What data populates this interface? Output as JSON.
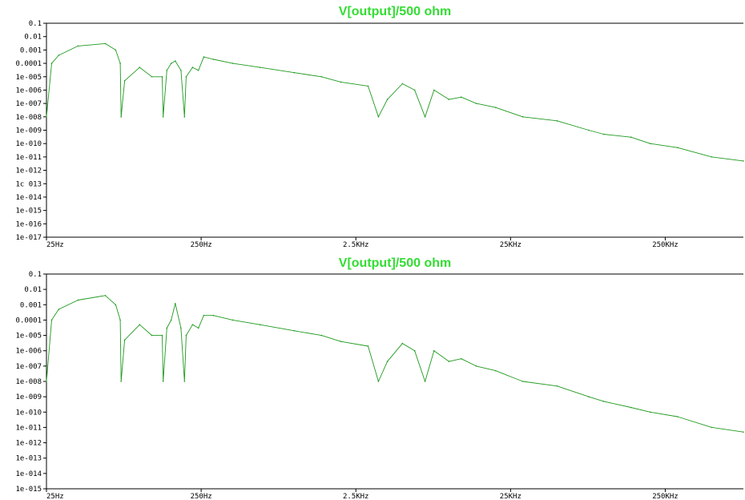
{
  "colors": {
    "trace": "#1f9a1f",
    "title": "#33dd33",
    "axis": "#000000",
    "background": "#ffffff"
  },
  "chart_data": [
    {
      "type": "line",
      "title": "V[output]/500 ohm",
      "xscale": "log",
      "yscale": "log",
      "xlim": [
        25,
        800000
      ],
      "ylim": [
        1e-17,
        0.1
      ],
      "grid": false,
      "x_tick_values": [
        25,
        250,
        2500,
        25000,
        250000
      ],
      "x_tick_labels": [
        "25Hz",
        "250Hz",
        "2.5KHz",
        "25KHz",
        "250KHz"
      ],
      "y_tick_labels": [
        "0.1",
        "0.01",
        "0.001",
        "0.0001",
        "1e-005",
        "1e-006",
        "1e-007",
        "1e-008",
        "1e-009",
        "1e-010",
        "1e-011",
        "1e-012",
        "1c 013",
        "1e-014",
        "1e-015",
        "1e-016",
        "1e-017"
      ],
      "series": [
        {
          "x": [
            25,
            27,
            30,
            40,
            60,
            70,
            75,
            76,
            80,
            100,
            120,
            140,
            142,
            150,
            160,
            170,
            185,
            195,
            200,
            220,
            240,
            260,
            300,
            400,
            600,
            1000,
            1500,
            2000,
            3000,
            3500,
            4000,
            5000,
            6000,
            7000,
            8000,
            10000,
            12000,
            15000,
            20000,
            30000,
            50000,
            80000,
            100000,
            150000,
            200000,
            300000,
            500000,
            800000
          ],
          "y": [
            1e-08,
            0.0001,
            0.0004,
            0.002,
            0.003,
            0.001,
            0.0001,
            1e-08,
            5e-06,
            5e-05,
            1e-05,
            1e-05,
            1e-08,
            3e-05,
            0.0001,
            0.00015,
            3e-05,
            1e-08,
            1e-05,
            5e-05,
            3e-05,
            0.0003,
            0.0002,
            0.0001,
            5e-05,
            2e-05,
            1e-05,
            4e-06,
            2e-06,
            1e-08,
            2e-07,
            3e-06,
            1e-06,
            1e-08,
            1e-06,
            2e-07,
            3e-07,
            1e-07,
            5e-08,
            1e-08,
            5e-09,
            1e-09,
            5e-10,
            3e-10,
            1e-10,
            5e-11,
            1e-11,
            5e-12
          ]
        }
      ]
    },
    {
      "type": "line",
      "title": "V[output]/500 ohm",
      "xscale": "log",
      "yscale": "log",
      "xlim": [
        25,
        800000
      ],
      "ylim": [
        1e-15,
        0.1
      ],
      "grid": false,
      "x_tick_values": [
        25,
        250,
        2500,
        25000,
        250000
      ],
      "x_tick_labels": [
        "25Hz",
        "250Hz",
        "2.5KHz",
        "25KHz",
        "250KHz"
      ],
      "y_tick_labels": [
        "0.1",
        "0.01",
        "0.001",
        "0.0001",
        "1e-005",
        "1e-006",
        "1e-007",
        "1e-008",
        "1e-009",
        "1e-010",
        "1e-011",
        "1e-012",
        "1e-013",
        "1e-014",
        "1e-015"
      ],
      "series": [
        {
          "x": [
            25,
            27,
            30,
            40,
            60,
            70,
            75,
            76,
            80,
            100,
            120,
            140,
            142,
            150,
            160,
            170,
            185,
            195,
            200,
            220,
            240,
            260,
            300,
            400,
            600,
            1000,
            1500,
            2000,
            3000,
            3500,
            4000,
            5000,
            6000,
            7000,
            8000,
            10000,
            12000,
            15000,
            20000,
            30000,
            50000,
            80000,
            100000,
            150000,
            200000,
            300000,
            500000,
            800000
          ],
          "y": [
            1e-08,
            0.0001,
            0.0005,
            0.002,
            0.004,
            0.001,
            0.0001,
            1e-08,
            5e-06,
            5e-05,
            1e-05,
            1e-05,
            1e-08,
            3e-05,
            0.0001,
            0.0012,
            3e-05,
            1e-08,
            1e-05,
            5e-05,
            3e-05,
            0.0002,
            0.0002,
            0.0001,
            5e-05,
            2e-05,
            1e-05,
            4e-06,
            2e-06,
            1e-08,
            2e-07,
            3e-06,
            1e-06,
            1e-08,
            1e-06,
            2e-07,
            3e-07,
            1e-07,
            5e-08,
            1e-08,
            5e-09,
            1e-09,
            5e-10,
            2e-10,
            1e-10,
            5e-11,
            1e-11,
            5e-12
          ]
        }
      ]
    }
  ]
}
